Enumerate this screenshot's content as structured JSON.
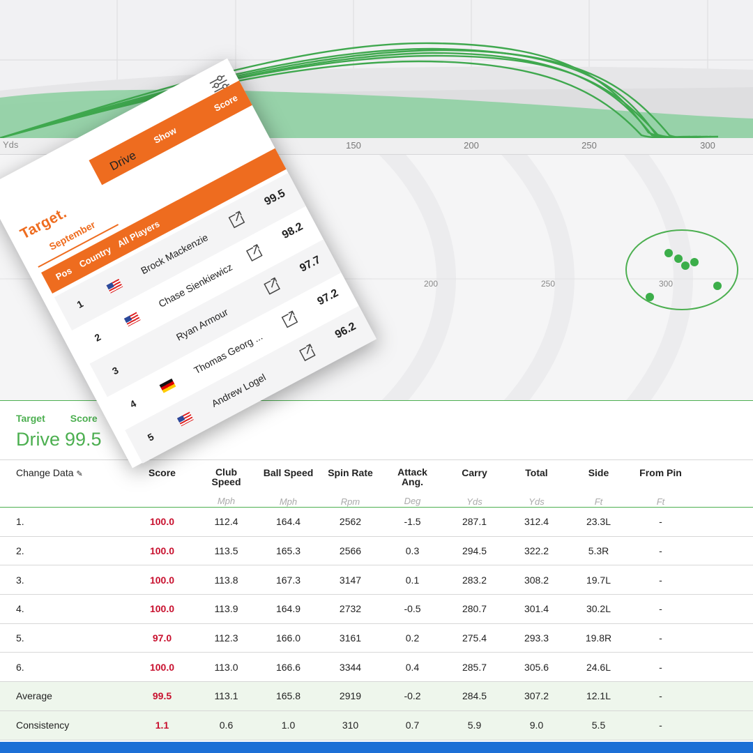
{
  "trajectory": {
    "axis_label": "Yds",
    "ticks": [
      "150",
      "200",
      "250",
      "300"
    ],
    "colors": {
      "shot": "#4caf50",
      "fill": "#8fd0a3"
    }
  },
  "dispersion": {
    "ticks": [
      "200",
      "250",
      "300"
    ],
    "colors": {
      "dot": "#3cae4a",
      "ring": "#4caf50"
    }
  },
  "phone": {
    "brand": "Target.",
    "title": "Drive",
    "show_label": "Show",
    "score_label": "Score",
    "month": "September",
    "headers": {
      "pos": "Pos",
      "country": "Country",
      "players": "All Players"
    },
    "rows": [
      {
        "pos": "1",
        "flag": "us",
        "name": "Brock Mackenzie",
        "score": "99.5"
      },
      {
        "pos": "2",
        "flag": "us",
        "name": "Chase Sienkiewicz",
        "score": "98.2"
      },
      {
        "pos": "3",
        "flag": "",
        "name": "Ryan Armour",
        "score": "97.7"
      },
      {
        "pos": "4",
        "flag": "de",
        "name": "Thomas Georg ...",
        "score": "97.2"
      },
      {
        "pos": "5",
        "flag": "us",
        "name": "Andrew Logel",
        "score": "96.2"
      }
    ]
  },
  "panel": {
    "label_target": "Target",
    "label_score": "Score",
    "value_title": "Drive",
    "value_score": "99.5",
    "change_data": "Change Data",
    "columns": [
      {
        "label": "Score",
        "unit": ""
      },
      {
        "label": "Club Speed",
        "unit": "Mph"
      },
      {
        "label": "Ball Speed",
        "unit": "Mph"
      },
      {
        "label": "Spin Rate",
        "unit": "Rpm"
      },
      {
        "label": "Attack Ang.",
        "unit": "Deg"
      },
      {
        "label": "Carry",
        "unit": "Yds"
      },
      {
        "label": "Total",
        "unit": "Yds"
      },
      {
        "label": "Side",
        "unit": "Ft"
      },
      {
        "label": "From Pin",
        "unit": "Ft"
      }
    ],
    "shots": [
      {
        "label": "1.",
        "values": [
          "100.0",
          "112.4",
          "164.4",
          "2562",
          "-1.5",
          "287.1",
          "312.4",
          "23.3L",
          "-"
        ]
      },
      {
        "label": "2.",
        "values": [
          "100.0",
          "113.5",
          "165.3",
          "2566",
          "0.3",
          "294.5",
          "322.2",
          "5.3R",
          "-"
        ]
      },
      {
        "label": "3.",
        "values": [
          "100.0",
          "113.8",
          "167.3",
          "3147",
          "0.1",
          "283.2",
          "308.2",
          "19.7L",
          "-"
        ]
      },
      {
        "label": "4.",
        "values": [
          "100.0",
          "113.9",
          "164.9",
          "2732",
          "-0.5",
          "280.7",
          "301.4",
          "30.2L",
          "-"
        ]
      },
      {
        "label": "5.",
        "values": [
          "97.0",
          "112.3",
          "166.0",
          "3161",
          "0.2",
          "275.4",
          "293.3",
          "19.8R",
          "-"
        ]
      },
      {
        "label": "6.",
        "values": [
          "100.0",
          "113.0",
          "166.6",
          "3344",
          "0.4",
          "285.7",
          "305.6",
          "24.6L",
          "-"
        ]
      }
    ],
    "summary": [
      {
        "label": "Average",
        "values": [
          "99.5",
          "113.1",
          "165.8",
          "2919",
          "-0.2",
          "284.5",
          "307.2",
          "12.1L",
          "-"
        ]
      },
      {
        "label": "Consistency",
        "values": [
          "1.1",
          "0.6",
          "1.0",
          "310",
          "0.7",
          "5.9",
          "9.0",
          "5.5",
          "-"
        ]
      }
    ]
  }
}
